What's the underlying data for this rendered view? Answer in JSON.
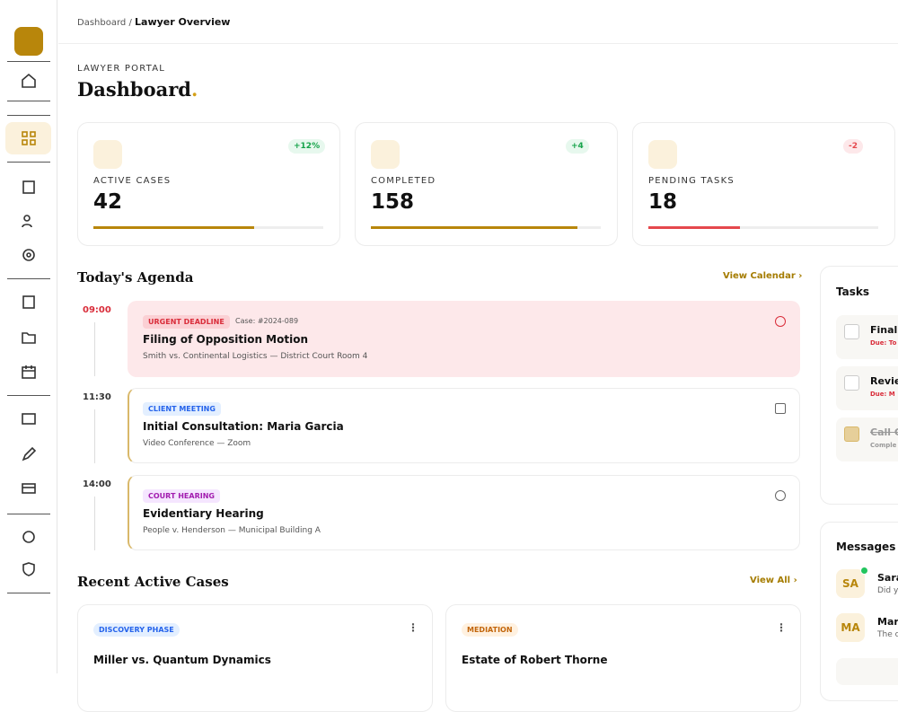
{
  "breadcrumb": {
    "parent": "Dashboard",
    "separator": "/",
    "current": "Lawyer Overview"
  },
  "header": {
    "eyebrow": "LAWYER PORTAL",
    "title": "Dashboard",
    "title_accent": "."
  },
  "stats": [
    {
      "label": "ACTIVE CASES",
      "value": 42,
      "change": "+12%"
    },
    {
      "label": "COMPLETED",
      "value": 158,
      "change": "+4"
    },
    {
      "label": "PENDING TASKS",
      "value": 18,
      "change": "-2"
    }
  ],
  "agenda": {
    "title": "Today's Agenda",
    "link": "View Calendar",
    "items": [
      {
        "time": "09:00",
        "tag": "URGENT DEADLINE",
        "case": "Case: #2024-089",
        "title": "Filing of Opposition Motion",
        "detail": "Smith vs. Continental Logistics — District Court Room 4"
      },
      {
        "time": "11:30",
        "tag": "CLIENT MEETING",
        "title": "Initial Consultation: Maria Garcia",
        "detail": "Video Conference — Zoom"
      },
      {
        "time": "14:00",
        "tag": "COURT HEARING",
        "title": "Evidentiary Hearing",
        "detail": "People v. Henderson — Municipal Building A"
      }
    ]
  },
  "cases": {
    "title": "Recent Active Cases",
    "link": "View All",
    "items": [
      {
        "tag": "DISCOVERY PHASE",
        "title": "Miller vs. Quantum Dynamics"
      },
      {
        "tag": "MEDIATION",
        "title": "Estate of Robert Thorne"
      }
    ]
  },
  "tasks": {
    "title": "Tasks",
    "items": [
      {
        "title": "Finali",
        "due": "Due: To"
      },
      {
        "title": "Revie",
        "due": "Due: M"
      },
      {
        "title": "Call C",
        "due": "Comple"
      }
    ]
  },
  "messages": {
    "title": "Messages",
    "items": [
      {
        "initials": "SA",
        "name": "Sara",
        "preview": "Did y"
      },
      {
        "initials": "MA",
        "name": "Mar",
        "preview": "The c"
      }
    ]
  }
}
